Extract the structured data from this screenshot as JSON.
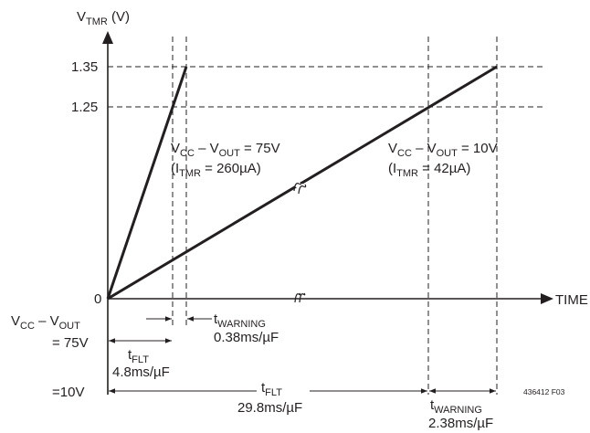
{
  "y_axis": {
    "main": "V",
    "sub": "TMR",
    "rest": " (V)"
  },
  "x_axis": {
    "label": "TIME"
  },
  "ticks": {
    "y_1_35": "1.35",
    "y_1_25": "1.25",
    "y_0": "0"
  },
  "ramp_75v": {
    "condition": {
      "p1": "V",
      "s1": "CC",
      "p2": " – V",
      "s2": "OUT",
      "p3": " = 75V"
    },
    "current": {
      "p1": "(I",
      "s1": "TMR",
      "p2": " = 260µA)"
    }
  },
  "ramp_10v": {
    "condition": {
      "p1": "V",
      "s1": "CC",
      "p2": " – V",
      "s2": "OUT",
      "p3": " = 10V"
    },
    "current": {
      "p1": "(I",
      "s1": "TMR",
      "p2": " = 42µA)"
    }
  },
  "left_labels": {
    "vcc_vout": {
      "p1": "V",
      "s1": "CC",
      "p2": " – V",
      "s2": "OUT"
    },
    "eq_75v": "= 75V",
    "eq_10v": "=10V"
  },
  "dims_75v": {
    "tflt": {
      "main": "t",
      "sub": "FLT",
      "value": "4.8ms/µF"
    },
    "twarning": {
      "main": "t",
      "sub": "WARNING",
      "value": "0.38ms/µF"
    }
  },
  "dims_10v": {
    "tflt": {
      "main": "t",
      "sub": "FLT",
      "value": "29.8ms/µF"
    },
    "twarning": {
      "main": "t",
      "sub": "WARNING",
      "value": "2.38ms/µF"
    }
  },
  "figure_id": "436412 F03"
}
